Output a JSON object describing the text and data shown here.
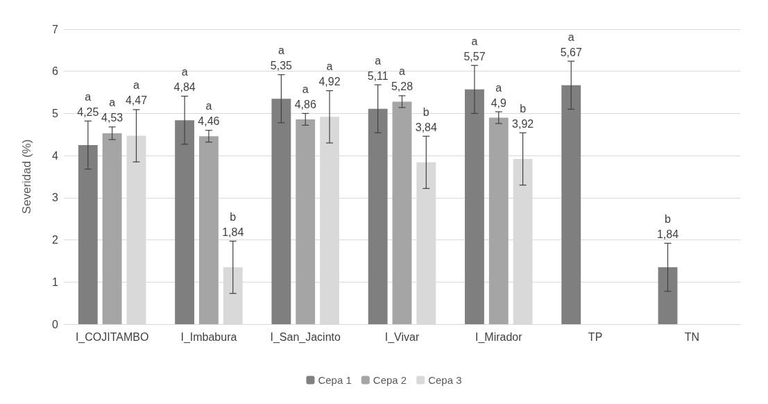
{
  "chart_data": {
    "type": "bar",
    "ylabel": "Severidad (%)",
    "categories": [
      "I_COJITAMBO",
      "I_Imbabura",
      "I_San_Jacinto",
      "I_Vivar",
      "I_Mirador",
      "TP",
      "TN"
    ],
    "ylim": [
      0,
      7
    ],
    "yticks": [
      0,
      1,
      2,
      3,
      4,
      5,
      6,
      7
    ],
    "grid": "y",
    "legend": "bottom",
    "series": [
      {
        "name": "Cepa 1",
        "color": "#7f7f7f",
        "values": [
          4.25,
          4.84,
          5.35,
          5.11,
          5.57,
          5.67,
          1.35
        ],
        "errors": [
          0.57,
          0.57,
          0.57,
          0.57,
          0.57,
          0.57,
          0.57
        ],
        "value_labels": [
          "a\n4,25",
          "a\n4,84",
          "a\n5,35",
          "a\n5,11",
          "a\n5,57",
          "a\n5,67",
          "b\n1,84"
        ]
      },
      {
        "name": "Cepa 2",
        "color": "#a5a5a5",
        "values": [
          4.53,
          4.46,
          4.86,
          5.28,
          4.9,
          null,
          null
        ],
        "errors": [
          0.15,
          0.14,
          0.14,
          0.14,
          0.14,
          null,
          null
        ],
        "value_labels": [
          "a\n4,53",
          "a\n4,46",
          "a\n4,86",
          "a\n5,28",
          "a\n4,9",
          null,
          null
        ]
      },
      {
        "name": "Cepa 3",
        "color": "#d9d9d9",
        "values": [
          4.47,
          1.35,
          4.92,
          3.84,
          3.92,
          null,
          null
        ],
        "errors": [
          0.62,
          0.62,
          0.62,
          0.62,
          0.62,
          null,
          null
        ],
        "value_labels": [
          "a\n4,47",
          "b\n1,84",
          "a\n4,92",
          "b\n3,84",
          "b\n3,92",
          null,
          null
        ]
      }
    ]
  }
}
